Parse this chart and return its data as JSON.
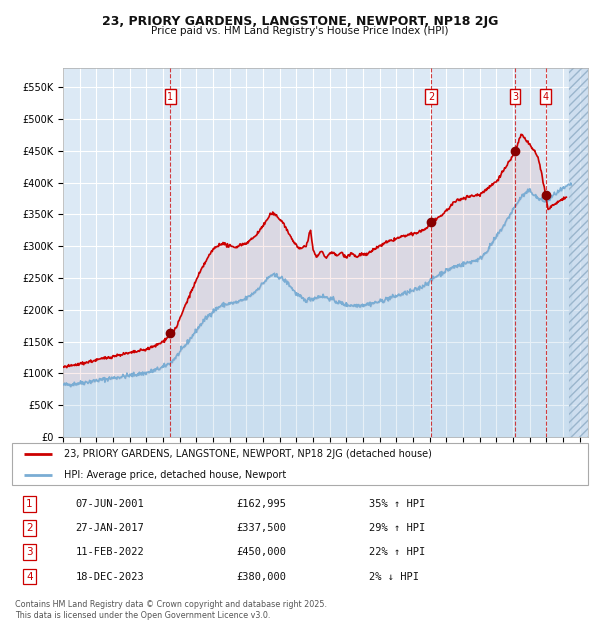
{
  "title_line1": "23, PRIORY GARDENS, LANGSTONE, NEWPORT, NP18 2JG",
  "title_line2": "Price paid vs. HM Land Registry's House Price Index (HPI)",
  "red_line_label": "23, PRIORY GARDENS, LANGSTONE, NEWPORT, NP18 2JG (detached house)",
  "blue_line_label": "HPI: Average price, detached house, Newport",
  "x_start": 1995.0,
  "x_end": 2026.5,
  "y_min": 0,
  "y_max": 580000,
  "y_ticks": [
    0,
    50000,
    100000,
    150000,
    200000,
    250000,
    300000,
    350000,
    400000,
    450000,
    500000,
    550000
  ],
  "y_tick_labels": [
    "£0",
    "£50K",
    "£100K",
    "£150K",
    "£200K",
    "£250K",
    "£300K",
    "£350K",
    "£400K",
    "£450K",
    "£500K",
    "£550K"
  ],
  "x_ticks": [
    1995,
    1996,
    1997,
    1998,
    1999,
    2000,
    2001,
    2002,
    2003,
    2004,
    2005,
    2006,
    2007,
    2008,
    2009,
    2010,
    2011,
    2012,
    2013,
    2014,
    2015,
    2016,
    2017,
    2018,
    2019,
    2020,
    2021,
    2022,
    2023,
    2024,
    2025,
    2026
  ],
  "background_color": "#dce9f5",
  "grid_color": "#ffffff",
  "red_color": "#cc0000",
  "blue_color": "#7aadd4",
  "dark_red_dot": "#880000",
  "sale_points": [
    {
      "num": 1,
      "year": 2001.44,
      "price": 162995
    },
    {
      "num": 2,
      "year": 2017.08,
      "price": 337500
    },
    {
      "num": 3,
      "year": 2022.12,
      "price": 450000
    },
    {
      "num": 4,
      "year": 2023.96,
      "price": 380000
    }
  ],
  "table_rows": [
    {
      "num": "1",
      "date": "07-JUN-2001",
      "price": "£162,995",
      "pct": "35% ↑ HPI"
    },
    {
      "num": "2",
      "date": "27-JAN-2017",
      "price": "£337,500",
      "pct": "29% ↑ HPI"
    },
    {
      "num": "3",
      "date": "11-FEB-2022",
      "price": "£450,000",
      "pct": "22% ↑ HPI"
    },
    {
      "num": "4",
      "date": "18-DEC-2023",
      "price": "£380,000",
      "pct": "2% ↓ HPI"
    }
  ],
  "footer_text": "Contains HM Land Registry data © Crown copyright and database right 2025.\nThis data is licensed under the Open Government Licence v3.0."
}
